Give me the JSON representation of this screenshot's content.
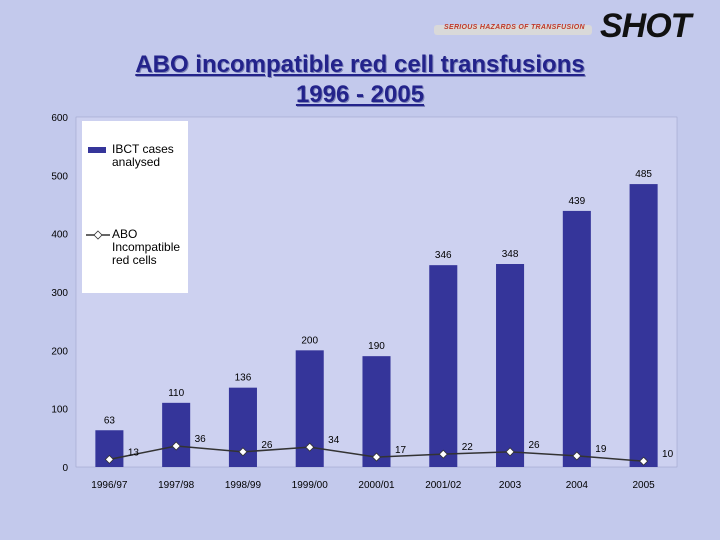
{
  "logo": {
    "tagline": "SERIOUS HAZARDS OF TRANSFUSION",
    "wordmark": "SHOT"
  },
  "colors": {
    "background": "#c3c9ec",
    "plot_area": "#cdd1f0",
    "bar": "#35359a",
    "line": "#333333",
    "title": "#23238b"
  },
  "chart_data": {
    "type": "bar",
    "title_lines": [
      "ABO incompatible red cell transfusions",
      "1996 - 2005"
    ],
    "categories": [
      "1996/97",
      "1997/98",
      "1998/99",
      "1999/00",
      "2000/01",
      "2001/02",
      "2003",
      "2004",
      "2005"
    ],
    "series": [
      {
        "name": "IBCT cases analysed",
        "kind": "bar",
        "values": [
          63,
          110,
          136,
          200,
          190,
          346,
          348,
          439,
          485
        ]
      },
      {
        "name": "ABO Incompatible red cells",
        "kind": "line",
        "values": [
          13,
          36,
          26,
          34,
          17,
          22,
          26,
          19,
          10
        ]
      }
    ],
    "y_ticks": [
      0,
      100,
      200,
      300,
      400,
      500,
      600
    ],
    "ylim": [
      0,
      600
    ],
    "grid": false,
    "legend_position": "top-left"
  }
}
